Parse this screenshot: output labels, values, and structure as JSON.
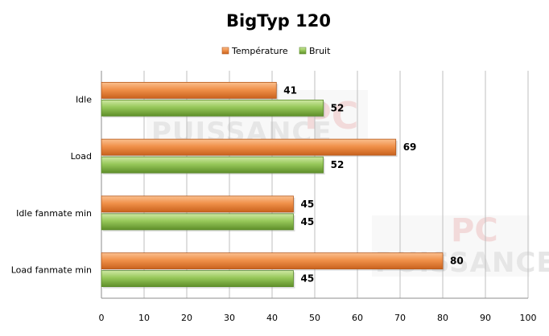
{
  "chart_data": {
    "type": "bar",
    "orientation": "horizontal",
    "title": "BigTyp 120",
    "categories": [
      "Idle",
      "Load",
      "Idle fanmate  min",
      "Load fanmate  min"
    ],
    "series": [
      {
        "name": "Température",
        "values": [
          41,
          69,
          45,
          80
        ],
        "color": "#e8823a"
      },
      {
        "name": "Bruit",
        "values": [
          52,
          52,
          45,
          45
        ],
        "color": "#8cc04a"
      }
    ],
    "xlim": [
      0,
      100
    ],
    "ticks": [
      "0",
      "10",
      "20",
      "30",
      "40",
      "50",
      "60",
      "70",
      "80",
      "90",
      "100"
    ],
    "grid": true,
    "legend": "top-center"
  }
}
